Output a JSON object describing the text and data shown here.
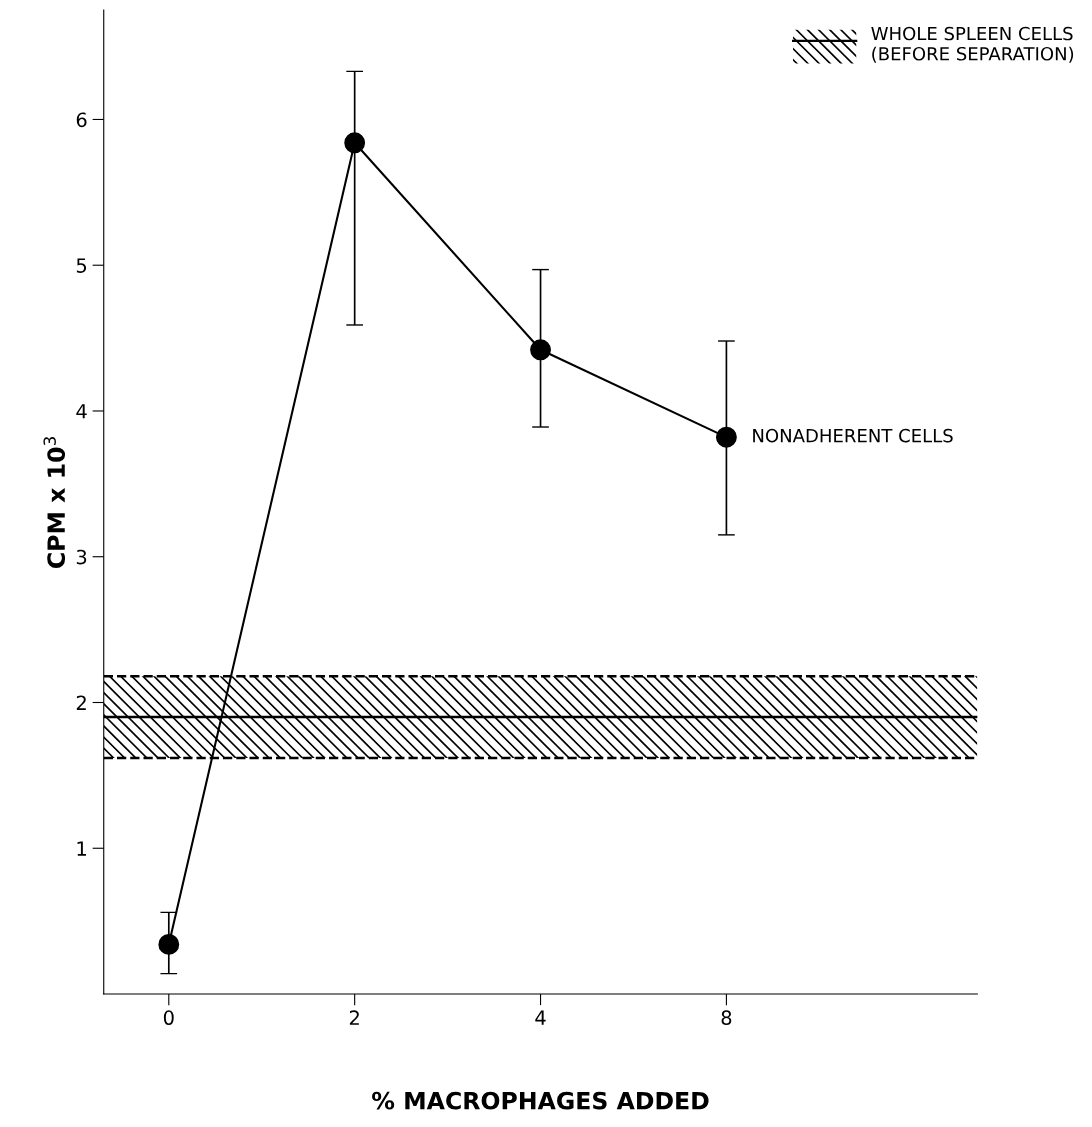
{
  "chart_data": {
    "type": "line",
    "xlabel": "% MACROPHAGES ADDED",
    "ylabel": "CPM x 10$^{3}$",
    "categories": [
      "0",
      "2",
      "4",
      "8"
    ],
    "series": [
      {
        "name": "NONADHERENT CELLS",
        "color": "#000000",
        "values": [
          0.34,
          5.84,
          4.42,
          3.82
        ],
        "errors": [
          [
            0.14,
            0.56
          ],
          [
            4.59,
            6.33
          ],
          [
            3.89,
            4.97
          ],
          [
            3.15,
            4.48
          ]
        ]
      }
    ],
    "ylim": [
      0,
      6.75
    ],
    "yticks": [
      1,
      2,
      3,
      4,
      5,
      6
    ],
    "marker": "circle",
    "line_style": "solid",
    "grid": false,
    "legend": "top right",
    "bands": [
      {
        "axis": "y",
        "from": 1.62,
        "to": 2.18,
        "label": "WHOLE SPLEEN CELLS\n(BEFORE SEPARATION)",
        "color": "#000000"
      }
    ],
    "ref_lines": [
      {
        "axis": "y",
        "value": 1.9,
        "color": "#000000",
        "line_style": "solid"
      },
      {
        "axis": "y",
        "value": 1.62,
        "color": "#000000",
        "line_style": "dashed"
      },
      {
        "axis": "y",
        "value": 2.18,
        "color": "#000000",
        "line_style": "dashed"
      }
    ]
  }
}
